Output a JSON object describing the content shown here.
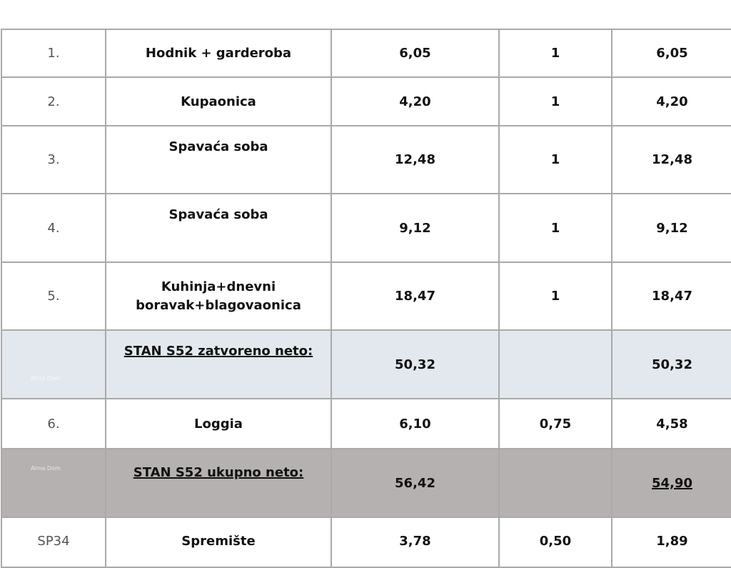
{
  "watermark": "Alma Dom",
  "rows": [
    {
      "no": "1.",
      "name": "Hodnik + garderoba",
      "area": "6,05",
      "coef": "1",
      "total": "6,05"
    },
    {
      "no": "2.",
      "name": "Kupaonica",
      "area": "4,20",
      "coef": "1",
      "total": "4,20"
    },
    {
      "no": "3.",
      "name": "Spavaća soba",
      "area": "12,48",
      "coef": "1",
      "total": "12,48"
    },
    {
      "no": "4.",
      "name": "Spavaća soba",
      "area": "9,12",
      "coef": "1",
      "total": "9,12"
    },
    {
      "no": "5.",
      "name": "Kuhinja+dnevni boravak+blagovaonica",
      "area": "18,47",
      "coef": "1",
      "total": "18,47"
    }
  ],
  "subtotal": {
    "name": "STAN S52 zatvoreno neto:",
    "area": "50,32",
    "total": "50,32"
  },
  "loggia": {
    "no": "6.",
    "name": "Loggia",
    "area": "6,10",
    "coef": "0,75",
    "total": "4,58"
  },
  "grand_total": {
    "name": "STAN S52 ukupno neto:",
    "area": "56,42",
    "total": "54,90"
  },
  "storage": {
    "no": "SP34",
    "name": "Spremište",
    "area": "3,78",
    "coef": "0,50",
    "total": "1,89"
  }
}
